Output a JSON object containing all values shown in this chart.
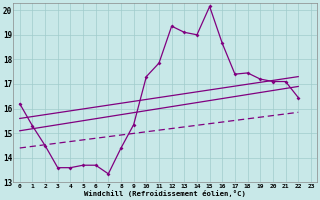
{
  "background_color": "#c8e8e8",
  "line_color": "#800080",
  "grid_color": "#a0cccc",
  "xlim": [
    -0.5,
    23.5
  ],
  "ylim": [
    13,
    20.3
  ],
  "xticks": [
    0,
    1,
    2,
    3,
    4,
    5,
    6,
    7,
    8,
    9,
    10,
    11,
    12,
    13,
    14,
    15,
    16,
    17,
    18,
    19,
    20,
    21,
    22,
    23
  ],
  "yticks": [
    13,
    14,
    15,
    16,
    17,
    18,
    19,
    20
  ],
  "xlabel": "Windchill (Refroidissement éolien,°C)",
  "hours": [
    0,
    1,
    2,
    3,
    4,
    5,
    6,
    7,
    8,
    9,
    10,
    11,
    12,
    13,
    14,
    15,
    16,
    17,
    18,
    19,
    20,
    21,
    22,
    23
  ],
  "line_jagged": [
    16.2,
    15.3,
    14.5,
    13.6,
    13.6,
    13.7,
    13.7,
    13.35,
    14.4,
    15.35,
    17.3,
    17.85,
    19.35,
    19.1,
    19.0,
    20.15,
    18.65,
    17.4,
    17.45,
    17.2,
    17.1,
    17.1,
    16.45,
    null
  ],
  "line_upper_start": 15.6,
  "line_upper_end": 17.3,
  "line_mid_start": 15.1,
  "line_mid_end": 16.9,
  "line_lower_start": 14.4,
  "line_lower_end": 15.85
}
